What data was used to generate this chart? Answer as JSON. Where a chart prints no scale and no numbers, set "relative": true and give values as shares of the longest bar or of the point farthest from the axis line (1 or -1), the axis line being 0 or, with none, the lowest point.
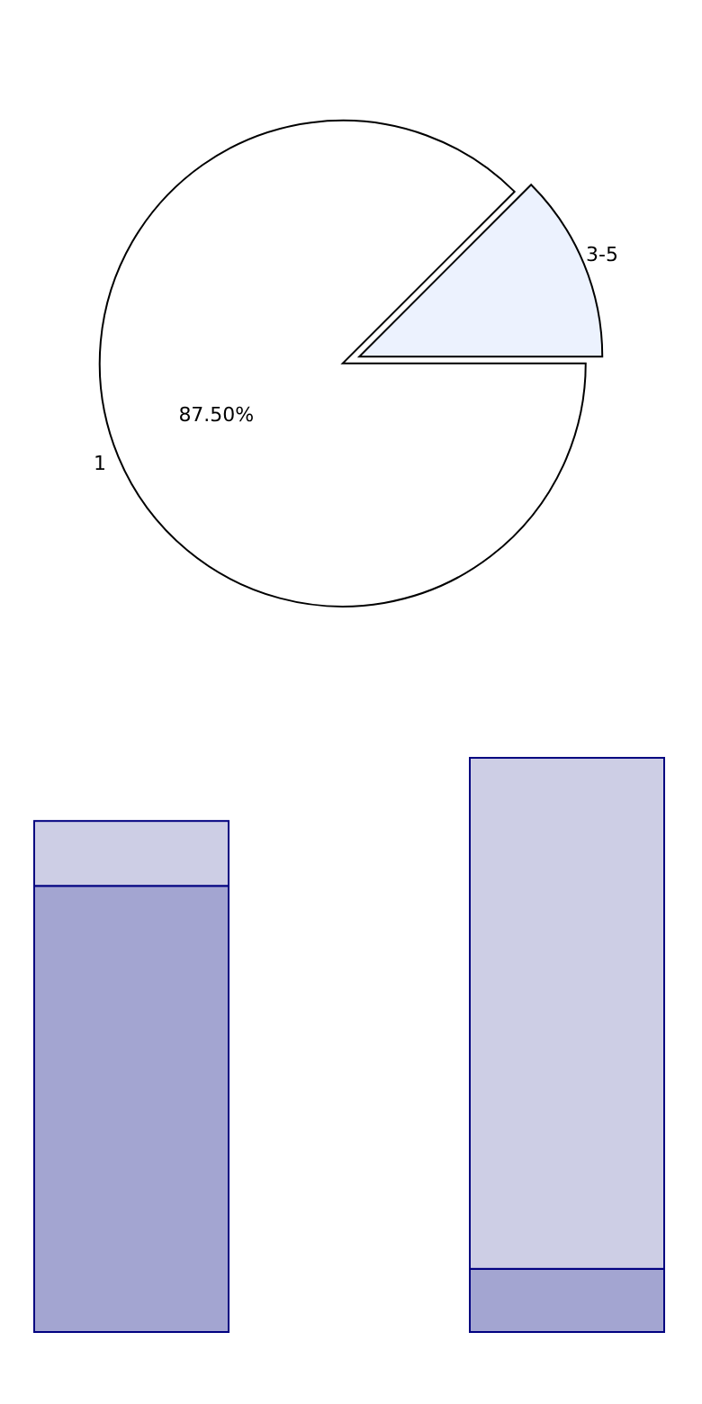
{
  "chart_data": [
    {
      "type": "pie",
      "categories": [
        "1",
        "3-5"
      ],
      "values": [
        87.5,
        12.5
      ],
      "colors": [
        "#ffffff",
        "#ecf2fe"
      ],
      "value_labels": [
        "87.50%",
        null
      ]
    },
    {
      "type": "bar",
      "relative": true,
      "stacked": true,
      "categories": [
        null,
        null
      ],
      "series": [
        {
          "color": "#a3a5d1",
          "values": [
            0.777,
            0.11
          ]
        },
        {
          "color": "#cdcee5",
          "values": [
            0.113,
            0.89
          ]
        }
      ]
    }
  ]
}
